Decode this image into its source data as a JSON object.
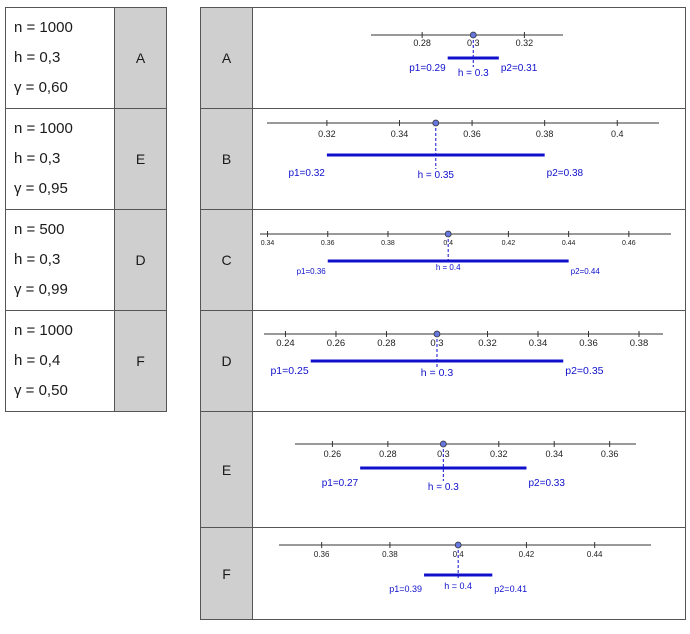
{
  "left_table": [
    {
      "n": "n = 1000",
      "h": "h = 0,3",
      "g": "γ = 0,60",
      "letter": "A"
    },
    {
      "n": "n = 1000",
      "h": "h = 0,3",
      "g": "γ = 0,95",
      "letter": "E"
    },
    {
      "n": "n = 500",
      "h": "h = 0,3",
      "g": "γ = 0,99",
      "letter": "D"
    },
    {
      "n": "n = 1000",
      "h": "h = 0,4",
      "g": "γ = 0,50",
      "letter": "F"
    }
  ],
  "right_table": [
    {
      "letter": "A",
      "chart": {
        "ticks": [
          0.28,
          0.3,
          0.32
        ],
        "tick_labels": [
          "0.28",
          "0.3",
          "0.32"
        ],
        "x_range": [
          0.26,
          0.3351
        ],
        "h": 0.3,
        "p1": 0.29,
        "p2": 0.31,
        "h_label": "h = 0.3",
        "p1_label": "p1=0.29",
        "p2_label": "p2=0.31"
      }
    },
    {
      "letter": "B",
      "chart": {
        "ticks": [
          0.32,
          0.34,
          0.36,
          0.38,
          0.4
        ],
        "tick_labels": [
          "0.32",
          "0.34",
          "0.36",
          "0.38",
          "0.4"
        ],
        "x_range": [
          0.3035,
          0.4115
        ],
        "h": 0.35,
        "p1": 0.32,
        "p2": 0.38,
        "h_label": "h = 0.35",
        "p1_label": "p1=0.32",
        "p2_label": "p2=0.38"
      }
    },
    {
      "letter": "C",
      "chart": {
        "ticks": [
          0.34,
          0.36,
          0.38,
          0.4,
          0.42,
          0.44,
          0.46
        ],
        "tick_labels": [
          "0.34",
          "0.36",
          "0.38",
          "0.4",
          "0.42",
          "0.44",
          "0.46"
        ],
        "x_range": [
          0.3375,
          0.474
        ],
        "h": 0.4,
        "p1": 0.36,
        "p2": 0.44,
        "h_label": "h = 0.4",
        "p1_label": "p1=0.36",
        "p2_label": "p2=0.44"
      }
    },
    {
      "letter": "D",
      "chart": {
        "ticks": [
          0.24,
          0.26,
          0.28,
          0.3,
          0.32,
          0.34,
          0.36,
          0.38
        ],
        "tick_labels": [
          "0.24",
          "0.26",
          "0.28",
          "0.3",
          "0.32",
          "0.34",
          "0.36",
          "0.38"
        ],
        "x_range": [
          0.2315,
          0.3895
        ],
        "h": 0.3,
        "p1": 0.25,
        "p2": 0.35,
        "h_label": "h = 0.3",
        "p1_label": "p1=0.25",
        "p2_label": "p2=0.35"
      }
    },
    {
      "letter": "E",
      "chart": {
        "ticks": [
          0.26,
          0.28,
          0.3,
          0.32,
          0.34,
          0.36
        ],
        "tick_labels": [
          "0.26",
          "0.28",
          "0.3",
          "0.32",
          "0.34",
          "0.36"
        ],
        "x_range": [
          0.2465,
          0.3695
        ],
        "h": 0.3,
        "p1": 0.27,
        "p2": 0.33,
        "h_label": "h = 0.3",
        "p1_label": "p1=0.27",
        "p2_label": "p2=0.33"
      }
    },
    {
      "letter": "F",
      "chart": {
        "ticks": [
          0.36,
          0.38,
          0.4,
          0.42,
          0.44
        ],
        "tick_labels": [
          "0.36",
          "0.38",
          "0.4",
          "0.42",
          "0.44"
        ],
        "x_range": [
          0.3475,
          0.4565
        ],
        "h": 0.4,
        "p1": 0.39,
        "p2": 0.41,
        "h_label": "h = 0.4",
        "p1_label": "p1=0.39",
        "p2_label": "p2=0.41"
      }
    }
  ],
  "colors": {
    "interval": "#1010cc",
    "axis": "#333333",
    "cell_gray": "#cfcfcf",
    "point": "#6677dd"
  }
}
